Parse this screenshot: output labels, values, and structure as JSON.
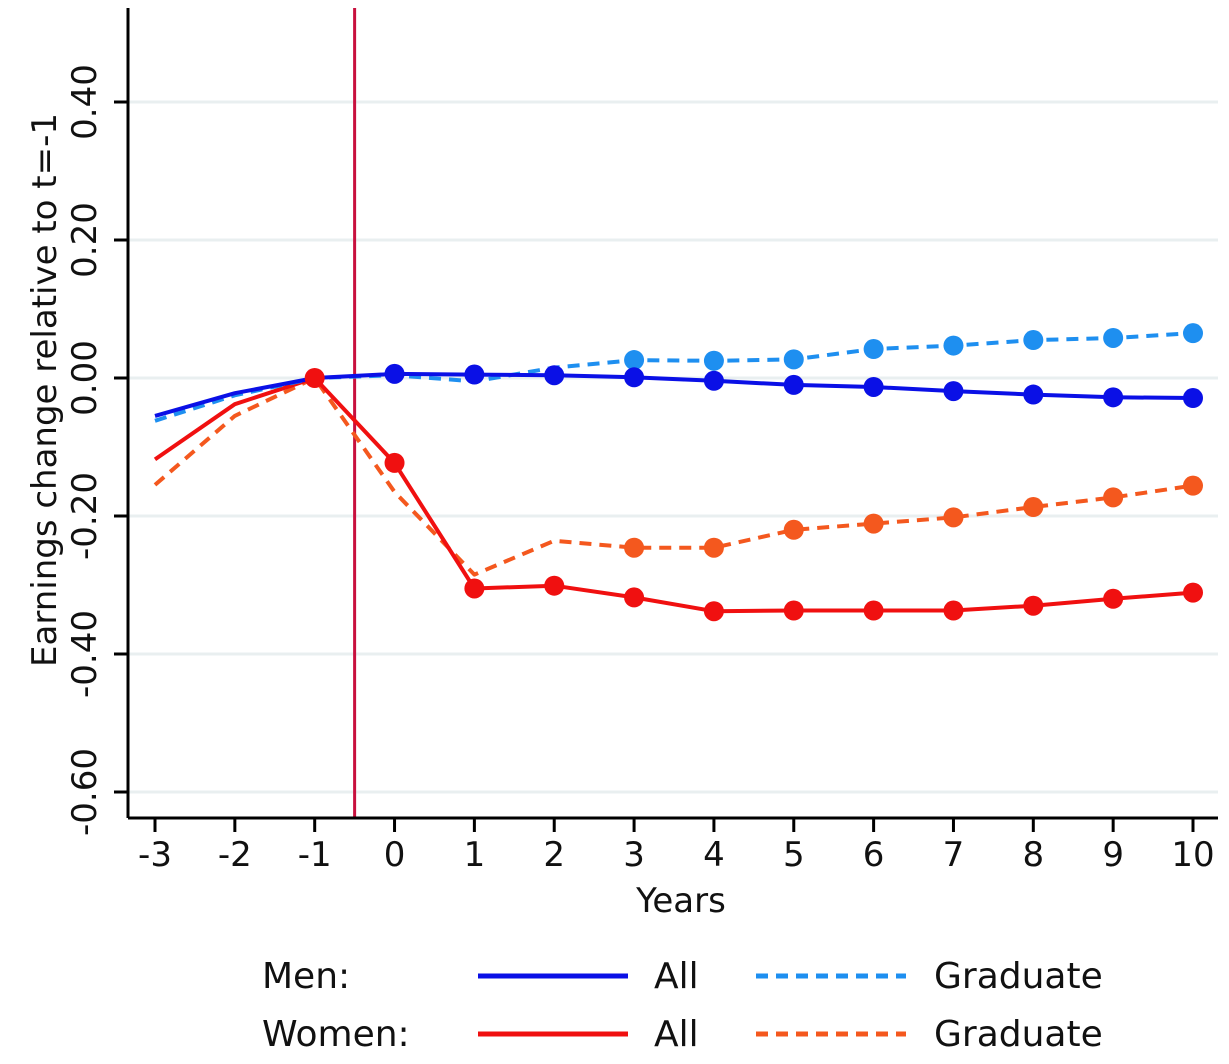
{
  "chart_data": {
    "type": "line",
    "xlabel": "Years",
    "ylabel": "Earnings change relative to t=-1",
    "x": [
      -3,
      -2,
      -1,
      0,
      1,
      2,
      3,
      4,
      5,
      6,
      7,
      8,
      9,
      10
    ],
    "x_tick_labels": [
      "-3",
      "-2",
      "-1",
      "0",
      "1",
      "2",
      "3",
      "4",
      "5",
      "6",
      "7",
      "8",
      "9",
      "10"
    ],
    "y_ticks": [
      -0.6,
      -0.4,
      -0.2,
      0.0,
      0.2,
      0.4
    ],
    "y_tick_labels": [
      "-0.60",
      "-0.40",
      "-0.20",
      "0.00",
      "0.20",
      "0.40"
    ],
    "ylim": [
      -0.64,
      0.54
    ],
    "xlim": [
      -3.3,
      10.3
    ],
    "grid": "horizontal",
    "vertical_reference_line": {
      "x": -0.5,
      "color": "#c8103e"
    },
    "series": [
      {
        "id": "men_all",
        "values": [
          -0.055,
          -0.022,
          0.0,
          0.006,
          0.005,
          0.004,
          0.001,
          -0.004,
          -0.01,
          -0.013,
          -0.019,
          -0.024,
          -0.028,
          -0.029
        ],
        "markers_from_x": 0,
        "color": "#0a10e6",
        "dash": "solid"
      },
      {
        "id": "men_graduate",
        "values": [
          -0.062,
          -0.025,
          0.0,
          0.004,
          -0.005,
          0.015,
          0.026,
          0.025,
          0.027,
          0.042,
          0.047,
          0.055,
          0.058,
          0.065
        ],
        "markers_from_x": 3,
        "color": "#1e8ff0",
        "dash": "dashed"
      },
      {
        "id": "women_all",
        "values": [
          -0.118,
          -0.038,
          0.0,
          -0.123,
          -0.305,
          -0.301,
          -0.318,
          -0.338,
          -0.337,
          -0.337,
          -0.337,
          -0.33,
          -0.32,
          -0.311
        ],
        "markers_from_x": 0,
        "color": "#f01010",
        "dash": "solid"
      },
      {
        "id": "women_graduate",
        "values": [
          -0.155,
          -0.055,
          0.0,
          -0.165,
          -0.285,
          -0.236,
          -0.246,
          -0.246,
          -0.22,
          -0.211,
          -0.202,
          -0.187,
          -0.173,
          -0.156
        ],
        "markers_from_x": 3,
        "color": "#f4581e",
        "dash": "dashed"
      }
    ],
    "anchor_marker": {
      "x": -1,
      "y": 0.0,
      "color": "#f01010"
    },
    "legend": {
      "placement": "bottom",
      "rows": [
        {
          "group": "Men:",
          "items": [
            {
              "label": "All",
              "series": "men_all"
            },
            {
              "label": "Graduate",
              "series": "men_graduate"
            }
          ]
        },
        {
          "group": "Women:",
          "items": [
            {
              "label": "All",
              "series": "women_all"
            },
            {
              "label": "Graduate",
              "series": "women_graduate"
            }
          ]
        }
      ]
    }
  }
}
